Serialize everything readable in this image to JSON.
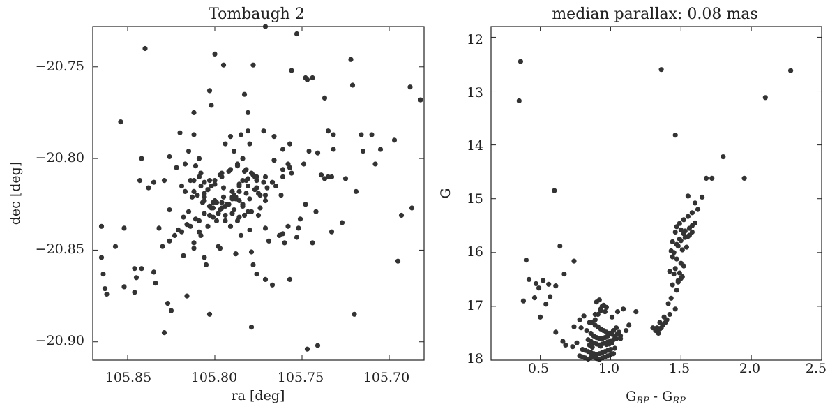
{
  "chart_data": [
    {
      "type": "scatter",
      "title": "Tombaugh 2",
      "xlabel": "ra [deg]",
      "ylabel": "dec [deg]",
      "xlim": [
        105.87,
        105.68
      ],
      "ylim": [
        -20.91,
        -20.728
      ],
      "x_inverted": true,
      "xticks": [
        105.85,
        105.8,
        105.75,
        105.7
      ],
      "xtick_labels": [
        "105.85",
        "105.80",
        "105.75",
        "105.70"
      ],
      "yticks": [
        -20.75,
        -20.8,
        -20.85,
        -20.9
      ],
      "ytick_labels": [
        "−20.75",
        "−20.80",
        "−20.85",
        "−20.90"
      ],
      "grid": false,
      "marker_color": "#333333",
      "x": [
        105.84,
        105.854,
        105.842,
        105.843,
        105.852,
        105.852,
        105.829,
        105.8,
        105.812,
        105.812,
        105.771,
        105.753,
        105.747,
        105.778,
        105.737,
        105.735,
        105.732,
        105.71,
        105.722,
        105.688,
        105.682,
        105.795,
        105.803,
        105.82,
        105.817,
        105.808,
        105.806,
        105.812,
        105.783,
        105.802,
        105.781,
        105.791,
        105.772,
        105.766,
        105.748,
        105.756,
        105.744,
        105.741,
        105.732,
        105.716,
        105.715,
        105.739,
        105.733,
        105.737,
        105.735,
        105.761,
        105.757,
        105.746,
        105.721,
        105.705,
        105.708,
        105.697,
        105.719,
        105.725,
        105.695,
        105.687,
        105.693,
        105.776,
        105.832,
        105.826,
        105.818,
        105.815,
        105.865,
        105.857,
        105.846,
        105.835,
        105.846,
        105.827,
        105.825,
        105.829,
        105.816,
        105.803,
        105.779,
        105.747,
        105.741,
        105.72,
        105.788,
        105.778,
        105.771,
        105.767,
        105.757,
        105.76,
        105.752,
        105.865,
        105.864,
        105.863,
        105.862,
        105.845,
        105.842,
        105.834,
        105.818,
        105.812,
        105.808,
        105.798,
        105.788,
        105.779,
        105.769,
        105.761,
        105.753,
        105.744,
        105.733,
        105.727,
        105.742,
        105.748,
        105.762,
        105.771,
        105.785,
        105.797,
        105.806,
        105.812,
        105.826,
        105.801,
        105.792,
        105.786,
        105.775,
        105.78,
        105.769,
        105.763,
        105.758,
        105.751,
        105.788,
        105.776,
        105.784,
        105.796,
        105.802,
        105.806,
        105.8,
        105.794,
        105.79,
        105.79,
        105.786,
        105.781,
        105.777,
        105.774,
        105.771,
        105.774,
        105.779,
        105.783,
        105.787,
        105.791,
        105.794,
        105.798,
        105.803,
        105.806,
        105.81,
        105.804,
        105.8,
        105.796,
        105.791,
        105.787,
        105.782,
        105.778,
        105.782,
        105.786,
        105.79,
        105.795,
        105.799,
        105.802,
        105.807,
        105.813,
        105.817,
        105.819,
        105.814,
        105.809,
        105.8,
        105.795,
        105.789,
        105.784,
        105.781,
        105.786,
        105.79,
        105.796,
        105.801,
        105.806,
        105.812,
        105.808,
        105.803,
        105.797,
        105.792,
        105.787,
        105.783,
        105.777,
        105.772,
        105.776,
        105.782,
        105.788,
        105.793,
        105.797,
        105.803,
        105.809,
        105.814,
        105.819,
        105.823,
        105.821,
        105.816,
        105.811,
        105.806,
        105.801,
        105.796,
        105.79,
        105.786,
        105.781,
        105.776,
        105.771,
        105.767,
        105.77,
        105.775,
        105.78,
        105.784,
        105.789,
        105.794,
        105.799,
        105.804,
        105.809,
        105.785,
        105.781,
        105.78,
        105.779,
        105.776,
        105.766,
        105.761,
        105.758,
        105.757,
        105.794,
        105.789,
        105.784,
        105.826,
        105.822,
        105.815,
        105.809,
        105.835,
        105.838,
        105.761,
        105.749,
        105.756,
        105.765,
        105.771,
        105.805,
        105.83,
        105.811
      ],
      "y": [
        -20.74,
        -20.78,
        -20.8,
        -20.812,
        -20.838,
        -20.87,
        -20.812,
        -20.743,
        -20.775,
        -20.787,
        -20.728,
        -20.732,
        -20.757,
        -20.749,
        -20.767,
        -20.785,
        -20.787,
        -20.787,
        -20.746,
        -20.761,
        -20.768,
        -20.749,
        -20.763,
        -20.786,
        -20.803,
        -20.808,
        -20.813,
        -20.812,
        -20.765,
        -20.771,
        -20.775,
        -20.788,
        -20.785,
        -20.788,
        -20.756,
        -20.752,
        -20.756,
        -20.797,
        -20.795,
        -20.787,
        -20.796,
        -20.809,
        -20.81,
        -20.811,
        -20.81,
        -20.795,
        -20.792,
        -20.796,
        -20.76,
        -20.795,
        -20.803,
        -20.79,
        -20.818,
        -20.811,
        -20.856,
        -20.827,
        -20.831,
        -20.863,
        -20.838,
        -20.828,
        -20.832,
        -20.829,
        -20.837,
        -20.848,
        -20.86,
        -20.862,
        -20.873,
        -20.879,
        -20.883,
        -20.895,
        -20.875,
        -20.885,
        -20.892,
        -20.904,
        -20.902,
        -20.885,
        -20.852,
        -20.858,
        -20.866,
        -20.869,
        -20.866,
        -20.846,
        -20.838,
        -20.854,
        -20.863,
        -20.871,
        -20.874,
        -20.865,
        -20.86,
        -20.868,
        -20.853,
        -20.846,
        -20.842,
        -20.848,
        -20.852,
        -20.851,
        -20.845,
        -20.841,
        -20.843,
        -20.846,
        -20.84,
        -20.835,
        -20.829,
        -20.825,
        -20.82,
        -20.838,
        -20.842,
        -20.849,
        -20.854,
        -20.849,
        -20.845,
        -20.832,
        -20.825,
        -20.823,
        -20.831,
        -20.839,
        -20.845,
        -20.842,
        -20.837,
        -20.833,
        -20.821,
        -20.816,
        -20.812,
        -20.808,
        -20.815,
        -20.819,
        -20.823,
        -20.826,
        -20.822,
        -20.818,
        -20.814,
        -20.811,
        -20.817,
        -20.82,
        -20.823,
        -20.827,
        -20.829,
        -20.831,
        -20.834,
        -20.837,
        -20.834,
        -20.83,
        -20.826,
        -20.823,
        -20.82,
        -20.817,
        -20.814,
        -20.81,
        -20.806,
        -20.803,
        -20.806,
        -20.809,
        -20.812,
        -20.815,
        -20.818,
        -20.821,
        -20.824,
        -20.827,
        -20.824,
        -20.821,
        -20.818,
        -20.815,
        -20.812,
        -20.81,
        -20.812,
        -20.816,
        -20.82,
        -20.826,
        -20.829,
        -20.832,
        -20.83,
        -20.827,
        -20.824,
        -20.821,
        -20.818,
        -20.815,
        -20.812,
        -20.809,
        -20.807,
        -20.804,
        -20.807,
        -20.81,
        -20.813,
        -20.816,
        -20.819,
        -20.822,
        -20.825,
        -20.828,
        -20.831,
        -20.834,
        -20.837,
        -20.84,
        -20.842,
        -20.839,
        -20.836,
        -20.833,
        -20.83,
        -20.827,
        -20.824,
        -20.821,
        -20.818,
        -20.815,
        -20.812,
        -20.81,
        -20.813,
        -20.816,
        -20.819,
        -20.822,
        -20.825,
        -20.828,
        -20.831,
        -20.834,
        -20.837,
        -20.84,
        -20.787,
        -20.785,
        -20.792,
        -20.808,
        -20.81,
        -20.801,
        -20.806,
        -20.803,
        -20.805,
        -20.792,
        -20.796,
        -20.8,
        -20.799,
        -20.805,
        -20.796,
        -20.8,
        -20.813,
        -20.816,
        -20.81,
        -20.803,
        -20.808,
        -20.815,
        -20.82,
        -20.858,
        -20.848,
        -20.804
      ]
    },
    {
      "type": "scatter",
      "title": "median parallax: 0.08 mas",
      "xlabel_parts": {
        "base1": "G",
        "sub1": "BP",
        "sep": " - ",
        "base2": "G",
        "sub2": "RP"
      },
      "ylabel": "G",
      "xlim": [
        0.15,
        2.5
      ],
      "ylim": [
        18.0,
        11.8
      ],
      "y_inverted": true,
      "xticks": [
        0.5,
        1.0,
        1.5,
        2.0,
        2.5
      ],
      "xtick_labels": [
        "0.5",
        "1.0",
        "1.5",
        "2.0",
        "2.5"
      ],
      "yticks": [
        12,
        13,
        14,
        15,
        16,
        17,
        18
      ],
      "ytick_labels": [
        "12",
        "13",
        "14",
        "15",
        "16",
        "17",
        "18"
      ],
      "grid": false,
      "marker_color": "#333333",
      "x": [
        0.36,
        0.35,
        1.36,
        2.28,
        2.1,
        1.46,
        1.8,
        1.95,
        1.68,
        1.72,
        0.6,
        1.55,
        1.6,
        1.65,
        1.62,
        1.58,
        1.55,
        1.52,
        1.49,
        1.47,
        1.5,
        1.53,
        1.56,
        1.58,
        1.6,
        1.55,
        1.52,
        1.49,
        1.46,
        1.44,
        1.47,
        1.5,
        1.53,
        1.56,
        1.58,
        1.54,
        1.51,
        1.48,
        1.45,
        1.43,
        1.44,
        1.47,
        1.5,
        1.52,
        1.46,
        1.49,
        1.51,
        1.48,
        1.45,
        1.42,
        1.44,
        1.48,
        1.5,
        1.47,
        1.43,
        1.41,
        1.46,
        1.42,
        1.4,
        1.39,
        1.37,
        1.36,
        1.35,
        1.33,
        1.32,
        1.3,
        1.35,
        1.38,
        1.34,
        0.4,
        0.42,
        0.47,
        0.52,
        0.49,
        0.56,
        0.61,
        0.64,
        0.67,
        0.74,
        0.38,
        0.46,
        0.5,
        0.54,
        0.57,
        0.61,
        0.66,
        0.68,
        0.74,
        0.78,
        0.81,
        0.85,
        0.89,
        0.93,
        0.97,
        1.01,
        1.05,
        1.09,
        1.13,
        1.18,
        0.79,
        0.83,
        0.86,
        0.88,
        0.9,
        0.92,
        0.94,
        0.96,
        0.98,
        1.0,
        1.02,
        1.04,
        0.87,
        0.89,
        0.91,
        0.93,
        0.95,
        0.97,
        0.99,
        1.01,
        1.03,
        1.06,
        0.84,
        0.86,
        0.88,
        0.9,
        0.92,
        0.94,
        0.96,
        0.98,
        1.0,
        1.02,
        1.04,
        1.07,
        0.8,
        0.82,
        0.84,
        0.86,
        0.88,
        0.9,
        0.92,
        0.94,
        0.96,
        0.98,
        1.0,
        1.03,
        0.78,
        0.8,
        0.82,
        0.84,
        0.86,
        0.88,
        0.9,
        0.92,
        0.94,
        0.96,
        0.98,
        1.0,
        1.02,
        0.89,
        0.91,
        0.93,
        0.95,
        0.9,
        0.92,
        0.94,
        0.96,
        0.85,
        0.87,
        0.93,
        0.97,
        1.01,
        0.99,
        0.76,
        0.73,
        1.11,
        1.05,
        1.07
      ],
      "y": [
        12.45,
        13.18,
        12.6,
        12.62,
        13.12,
        13.82,
        14.22,
        14.62,
        14.62,
        14.62,
        14.85,
        14.95,
        15.08,
        14.97,
        15.2,
        15.26,
        15.33,
        15.39,
        15.46,
        15.52,
        15.58,
        15.6,
        15.55,
        15.5,
        15.45,
        15.7,
        15.65,
        15.75,
        15.62,
        15.8,
        15.85,
        15.78,
        15.72,
        15.68,
        15.62,
        15.9,
        15.95,
        15.88,
        16.0,
        15.97,
        16.08,
        16.12,
        16.2,
        16.25,
        16.3,
        16.38,
        16.45,
        16.52,
        16.4,
        16.35,
        16.6,
        16.55,
        16.48,
        16.7,
        16.85,
        16.95,
        17.05,
        17.15,
        17.25,
        17.3,
        17.35,
        17.4,
        17.42,
        17.4,
        17.45,
        17.4,
        17.3,
        17.2,
        17.5,
        16.14,
        16.5,
        16.58,
        16.52,
        16.66,
        16.59,
        16.62,
        15.88,
        16.4,
        16.16,
        16.9,
        16.84,
        17.2,
        16.96,
        16.82,
        17.48,
        17.65,
        17.72,
        17.38,
        17.25,
        17.18,
        17.3,
        17.15,
        17.08,
        17.02,
        17.2,
        17.1,
        17.05,
        17.35,
        17.1,
        17.4,
        17.45,
        17.5,
        17.55,
        17.58,
        17.6,
        17.6,
        17.58,
        17.55,
        17.5,
        17.45,
        17.4,
        17.3,
        17.35,
        17.38,
        17.42,
        17.45,
        17.48,
        17.5,
        17.52,
        17.55,
        17.48,
        17.62,
        17.65,
        17.68,
        17.7,
        17.72,
        17.7,
        17.68,
        17.66,
        17.64,
        17.62,
        17.6,
        17.55,
        17.8,
        17.82,
        17.84,
        17.86,
        17.88,
        17.9,
        17.88,
        17.86,
        17.84,
        17.82,
        17.8,
        17.78,
        17.92,
        17.94,
        17.96,
        17.98,
        17.95,
        17.93,
        17.97,
        17.99,
        17.96,
        17.94,
        17.92,
        17.9,
        17.88,
        17.25,
        17.15,
        17.05,
        16.98,
        16.92,
        16.88,
        17.0,
        17.1,
        17.72,
        17.76,
        17.74,
        17.71,
        17.68,
        17.7,
        17.68,
        17.75,
        17.45,
        17.5,
        17.6
      ]
    }
  ]
}
